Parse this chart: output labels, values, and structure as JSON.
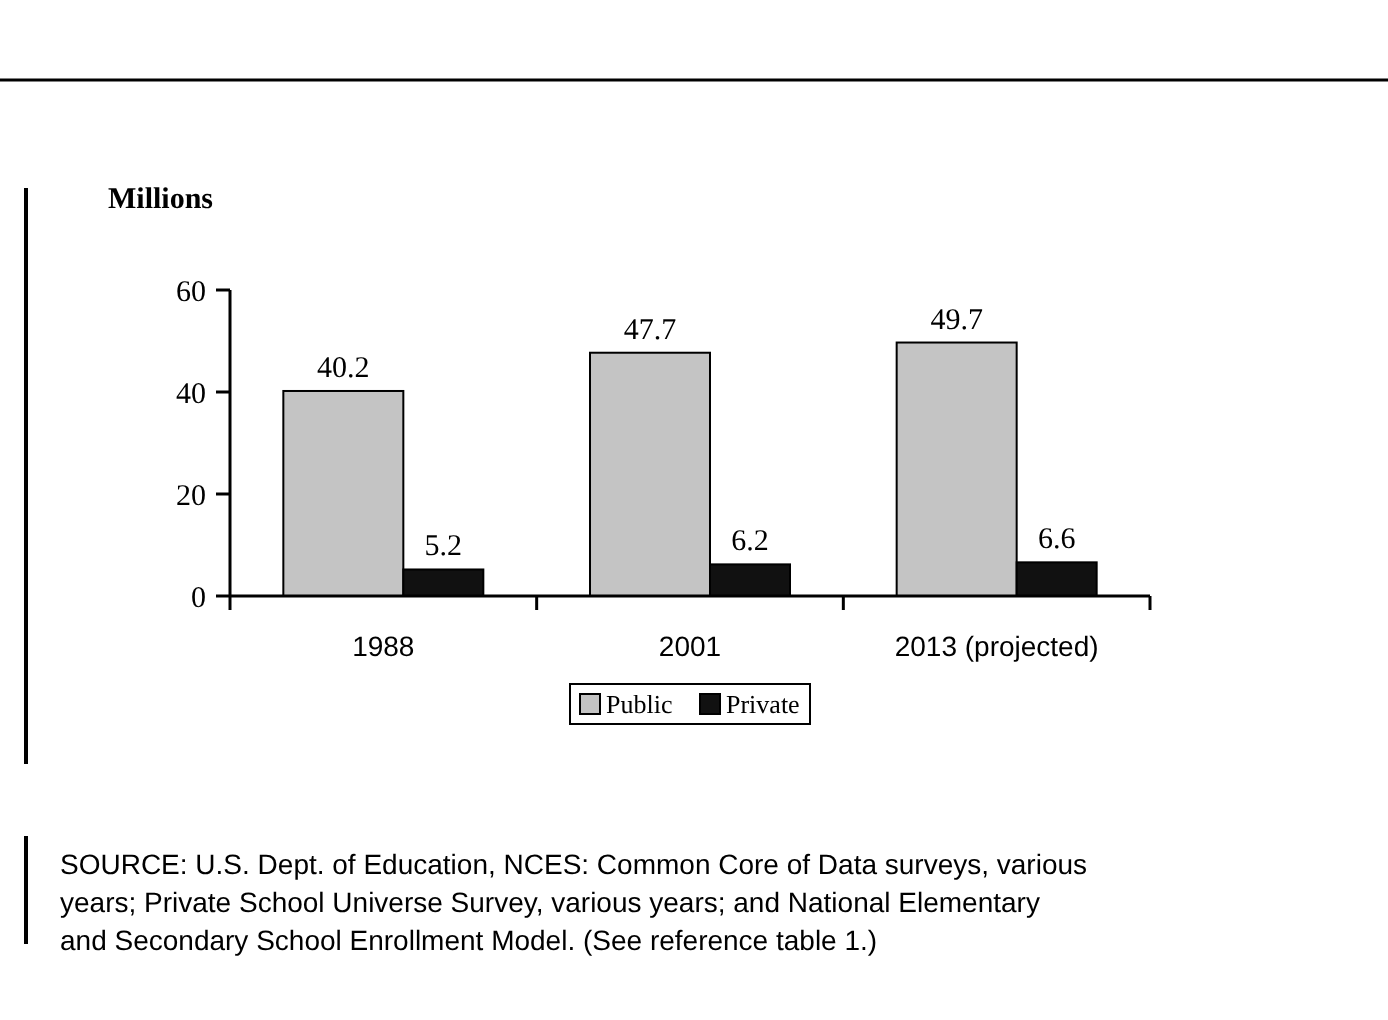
{
  "chart_data": {
    "type": "bar",
    "ylabel": "Millions",
    "categories": [
      "1988",
      "2001",
      "2013 (projected)"
    ],
    "series": [
      {
        "name": "Public",
        "color": "#c4c4c4",
        "values": [
          40.2,
          47.7,
          49.7
        ]
      },
      {
        "name": "Private",
        "color": "#111111",
        "values": [
          5.2,
          6.2,
          6.6
        ]
      }
    ],
    "ylim": [
      0,
      60
    ],
    "yticks": [
      0,
      20,
      40,
      60
    ],
    "data_labels": true,
    "legend": "bottom",
    "grid": false,
    "annotations": [
      "SOURCE: U.S. Dept. of Education, NCES: Common Core of Data surveys, various years; Private School Universe Survey, various years; and National Elementary and Secondary School Enrollment Model. (See reference table 1.)"
    ]
  }
}
